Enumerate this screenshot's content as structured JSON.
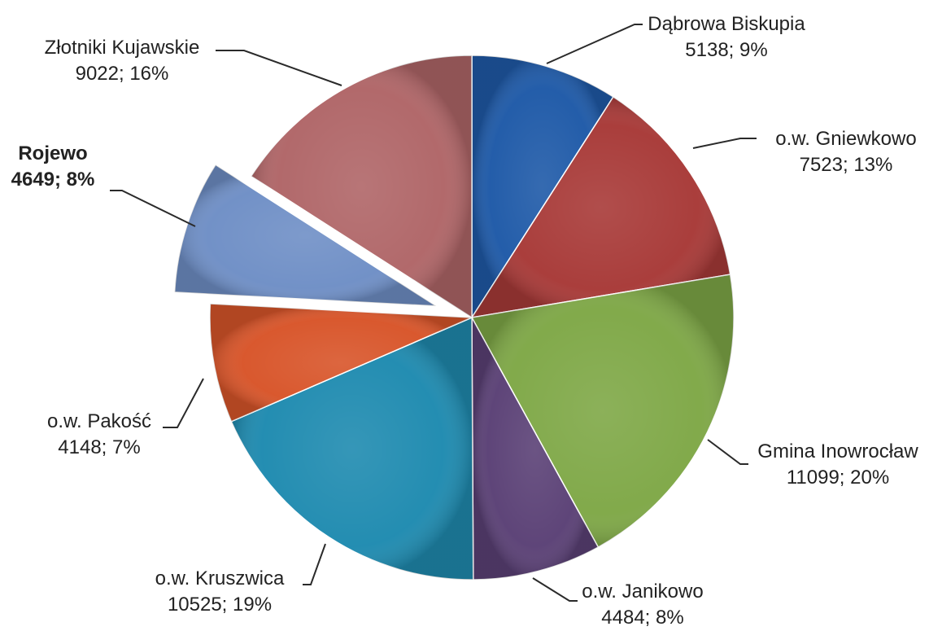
{
  "chart_data": {
    "type": "pie",
    "title": "",
    "exploded": "Rojewo",
    "slices": [
      {
        "name": "Dąbrowa Biskupia",
        "value": 5138,
        "label_value": "5138; 9%",
        "color": "#1f5aa8",
        "bold": false
      },
      {
        "name": "o.w. Gniewkowo",
        "value": 7523,
        "label_value": "7523; 13%",
        "color": "#a83a38",
        "bold": false
      },
      {
        "name": "Gmina Inowrocław",
        "value": 11099,
        "label_value": "11099; 20%",
        "color": "#7fa847",
        "bold": false
      },
      {
        "name": "o.w. Janikowo",
        "value": 4484,
        "label_value": "4484; 8%",
        "color": "#5b4176",
        "bold": false
      },
      {
        "name": "o.w. Kruszwica",
        "value": 10525,
        "label_value": "10525; 19%",
        "color": "#1f8bb0",
        "bold": false
      },
      {
        "name": "o.w. Pakość",
        "value": 4148,
        "label_value": "4148; 7%",
        "color": "#d8552a",
        "bold": false
      },
      {
        "name": "Rojewo",
        "value": 4649,
        "label_value": "4649; 8%",
        "color": "#6f8fc6",
        "bold": true
      },
      {
        "name": "Złotniki Kujawskie",
        "value": 9022,
        "label_value": "9022; 16%",
        "color": "#b06668",
        "bold": false
      }
    ]
  }
}
